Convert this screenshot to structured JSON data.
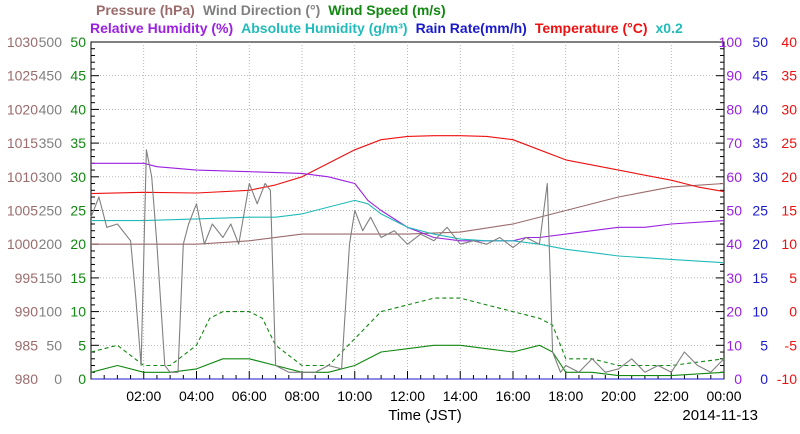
{
  "chart_data": {
    "type": "line",
    "legend_row1": [
      {
        "text": "Pressure (hPa)",
        "color": "#9b6b6b"
      },
      {
        "text": "Wind Direction (°)",
        "color": "#808080"
      },
      {
        "text": "Wind Speed (m/s)",
        "color": "#118811"
      }
    ],
    "legend_row2": [
      {
        "text": "Relative Humidity (%)",
        "color": "#9b20e0"
      },
      {
        "text": "Absolute Humidity (g/m³)",
        "color": "#22bbbb"
      },
      {
        "text": "Rain Rate(mm/h)",
        "color": "#1a1acc"
      },
      {
        "text": "Temperature (°C)",
        "color": "#ee1111"
      },
      {
        "text": "x0.2",
        "color": "#22bbbb"
      }
    ],
    "xlabel": "Time (JST)",
    "date_label": "2014-11-13",
    "x_ticks": [
      "02:00",
      "04:00",
      "06:00",
      "08:00",
      "10:00",
      "12:00",
      "14:00",
      "16:00",
      "18:00",
      "20:00",
      "22:00",
      "00:00"
    ],
    "x_range_hours": [
      0,
      24
    ],
    "left_axes": [
      {
        "name": "pressure",
        "color": "#9b6b6b",
        "labels": [
          "980",
          "985",
          "990",
          "995",
          "1000",
          "1005",
          "1010",
          "1015",
          "1020",
          "1025",
          "1030"
        ]
      },
      {
        "name": "wind_direction",
        "color": "#808080",
        "labels": [
          "0",
          "50",
          "100",
          "150",
          "200",
          "250",
          "300",
          "350",
          "400",
          "450",
          "500"
        ]
      },
      {
        "name": "wind_speed",
        "color": "#118811",
        "labels": [
          "0",
          "5",
          "10",
          "15",
          "20",
          "25",
          "30",
          "35",
          "40",
          "45",
          "50"
        ]
      }
    ],
    "right_axes": [
      {
        "name": "relative_humidity",
        "color": "#9b20e0",
        "labels": [
          "0",
          "10",
          "20",
          "30",
          "40",
          "50",
          "60",
          "70",
          "80",
          "90",
          "100"
        ]
      },
      {
        "name": "rain_rate",
        "color": "#1a1acc",
        "labels": [
          "0",
          "5",
          "10",
          "15",
          "20",
          "25",
          "30",
          "35",
          "40",
          "45",
          "50"
        ]
      },
      {
        "name": "temperature",
        "color": "#ee1111",
        "labels": [
          "-10",
          "-5",
          "0",
          "5",
          "10",
          "15",
          "20",
          "25",
          "30",
          "35",
          "40"
        ]
      }
    ],
    "series": [
      {
        "name": "Pressure (hPa)",
        "axis": "pressure",
        "color": "#9b6b6b",
        "points": [
          [
            0,
            1000
          ],
          [
            2,
            1000
          ],
          [
            4,
            1000
          ],
          [
            6,
            1000.5
          ],
          [
            8,
            1001.5
          ],
          [
            10,
            1001.5
          ],
          [
            12,
            1001.5
          ],
          [
            14,
            1001.8
          ],
          [
            16,
            1003
          ],
          [
            18,
            1005
          ],
          [
            20,
            1007
          ],
          [
            22,
            1008.5
          ],
          [
            24,
            1009
          ]
        ]
      },
      {
        "name": "Temperature (°C)",
        "axis": "temperature",
        "color": "#ee1111",
        "points": [
          [
            0,
            17.5
          ],
          [
            2,
            17.7
          ],
          [
            4,
            17.6
          ],
          [
            6,
            18.0
          ],
          [
            7,
            18.8
          ],
          [
            8,
            20.0
          ],
          [
            9,
            22.0
          ],
          [
            10,
            24.0
          ],
          [
            11,
            25.5
          ],
          [
            12,
            26.0
          ],
          [
            13,
            26.1
          ],
          [
            14,
            26.1
          ],
          [
            15,
            26.0
          ],
          [
            16,
            25.5
          ],
          [
            17,
            24.0
          ],
          [
            18,
            22.5
          ],
          [
            20,
            21.0
          ],
          [
            22,
            19.5
          ],
          [
            23,
            18.5
          ],
          [
            24,
            17.8
          ]
        ]
      },
      {
        "name": "Relative Humidity (%)",
        "axis": "relative_humidity",
        "color": "#9b20e0",
        "points": [
          [
            0,
            64
          ],
          [
            2,
            64
          ],
          [
            2.5,
            63
          ],
          [
            4,
            62
          ],
          [
            6,
            61.5
          ],
          [
            8,
            61
          ],
          [
            9,
            60
          ],
          [
            9.5,
            59
          ],
          [
            10,
            58
          ],
          [
            10.5,
            53
          ],
          [
            11,
            50
          ],
          [
            12,
            45
          ],
          [
            13,
            42
          ],
          [
            14,
            41
          ],
          [
            15,
            41
          ],
          [
            16,
            41
          ],
          [
            16.5,
            42
          ],
          [
            17,
            42
          ],
          [
            18,
            43
          ],
          [
            19,
            44
          ],
          [
            20,
            45
          ],
          [
            21,
            45
          ],
          [
            22,
            46
          ],
          [
            24,
            47
          ]
        ]
      },
      {
        "name": "Absolute Humidity (g/m³)",
        "axis": "relative_humidity",
        "color": "#22bbbb",
        "points": [
          [
            0,
            47
          ],
          [
            2,
            47
          ],
          [
            4,
            47.5
          ],
          [
            6,
            48
          ],
          [
            7,
            48
          ],
          [
            8,
            49
          ],
          [
            9,
            51
          ],
          [
            10,
            53
          ],
          [
            10.5,
            52
          ],
          [
            11,
            49
          ],
          [
            12,
            45
          ],
          [
            13,
            43
          ],
          [
            14,
            41.5
          ],
          [
            15,
            41
          ],
          [
            16,
            41
          ],
          [
            17,
            40
          ],
          [
            18,
            38.5
          ],
          [
            19,
            37.5
          ],
          [
            20,
            36.5
          ],
          [
            21,
            36
          ],
          [
            22,
            35.5
          ],
          [
            23,
            35
          ],
          [
            24,
            34.5
          ]
        ]
      },
      {
        "name": "Wind Speed (m/s) average",
        "axis": "wind_speed",
        "color": "#118811",
        "points": [
          [
            0,
            1
          ],
          [
            1,
            2
          ],
          [
            2,
            1
          ],
          [
            3,
            1
          ],
          [
            4,
            1.5
          ],
          [
            5,
            3
          ],
          [
            6,
            3
          ],
          [
            7,
            2
          ],
          [
            8,
            1
          ],
          [
            9,
            1
          ],
          [
            10,
            2
          ],
          [
            11,
            4
          ],
          [
            12,
            4.5
          ],
          [
            13,
            5
          ],
          [
            14,
            5
          ],
          [
            15,
            4.5
          ],
          [
            16,
            4
          ],
          [
            17,
            5
          ],
          [
            17.5,
            4
          ],
          [
            18,
            1
          ],
          [
            19,
            1
          ],
          [
            20,
            0.5
          ],
          [
            22,
            0.5
          ],
          [
            24,
            1
          ]
        ]
      },
      {
        "name": "Wind Speed (m/s) gust",
        "axis": "wind_speed",
        "color": "#118811",
        "dashed": true,
        "points": [
          [
            0,
            4
          ],
          [
            1,
            5
          ],
          [
            2,
            2
          ],
          [
            3,
            2
          ],
          [
            4,
            5
          ],
          [
            4.5,
            9
          ],
          [
            5,
            10
          ],
          [
            6,
            10
          ],
          [
            6.5,
            9
          ],
          [
            7,
            5
          ],
          [
            8,
            2
          ],
          [
            9,
            2
          ],
          [
            10,
            6
          ],
          [
            11,
            10
          ],
          [
            12,
            11
          ],
          [
            13,
            12
          ],
          [
            14,
            12
          ],
          [
            15,
            11
          ],
          [
            16,
            10
          ],
          [
            17,
            9
          ],
          [
            17.5,
            8
          ],
          [
            18,
            3
          ],
          [
            19,
            3
          ],
          [
            20,
            2
          ],
          [
            22,
            2
          ],
          [
            24,
            3
          ]
        ]
      },
      {
        "name": "Rain Rate(mm/h)",
        "axis": "rain_rate",
        "color": "#1a1acc",
        "points": [
          [
            0,
            0
          ],
          [
            24,
            0
          ]
        ]
      },
      {
        "name": "Wind Direction (°)",
        "axis": "wind_direction",
        "color": "#808080",
        "points": [
          [
            0,
            240
          ],
          [
            0.3,
            270
          ],
          [
            0.6,
            225
          ],
          [
            1,
            230
          ],
          [
            1.5,
            205
          ],
          [
            1.7,
            120
          ],
          [
            1.9,
            20
          ],
          [
            2.1,
            340
          ],
          [
            2.3,
            300
          ],
          [
            2.5,
            200
          ],
          [
            2.8,
            20
          ],
          [
            3,
            10
          ],
          [
            3.3,
            10
          ],
          [
            3.5,
            200
          ],
          [
            3.7,
            230
          ],
          [
            4,
            260
          ],
          [
            4.3,
            200
          ],
          [
            4.6,
            230
          ],
          [
            5,
            210
          ],
          [
            5.3,
            230
          ],
          [
            5.6,
            200
          ],
          [
            6,
            290
          ],
          [
            6.3,
            260
          ],
          [
            6.6,
            290
          ],
          [
            6.8,
            280
          ],
          [
            7,
            20
          ],
          [
            7.5,
            10
          ],
          [
            8,
            10
          ],
          [
            8.5,
            10
          ],
          [
            9,
            20
          ],
          [
            9.5,
            15
          ],
          [
            9.8,
            200
          ],
          [
            10,
            250
          ],
          [
            10.3,
            220
          ],
          [
            10.6,
            240
          ],
          [
            11,
            210
          ],
          [
            11.5,
            220
          ],
          [
            12,
            200
          ],
          [
            12.5,
            215
          ],
          [
            13,
            205
          ],
          [
            13.5,
            225
          ],
          [
            14,
            200
          ],
          [
            14.5,
            205
          ],
          [
            15,
            200
          ],
          [
            15.5,
            210
          ],
          [
            16,
            195
          ],
          [
            16.5,
            210
          ],
          [
            17,
            200
          ],
          [
            17.3,
            290
          ],
          [
            17.5,
            40
          ],
          [
            17.8,
            10
          ],
          [
            18,
            20
          ],
          [
            18.5,
            10
          ],
          [
            19,
            30
          ],
          [
            19.5,
            10
          ],
          [
            20,
            15
          ],
          [
            20.5,
            30
          ],
          [
            21,
            10
          ],
          [
            21.5,
            20
          ],
          [
            22,
            10
          ],
          [
            22.5,
            40
          ],
          [
            23,
            20
          ],
          [
            23.5,
            10
          ],
          [
            24,
            30
          ]
        ]
      }
    ]
  }
}
